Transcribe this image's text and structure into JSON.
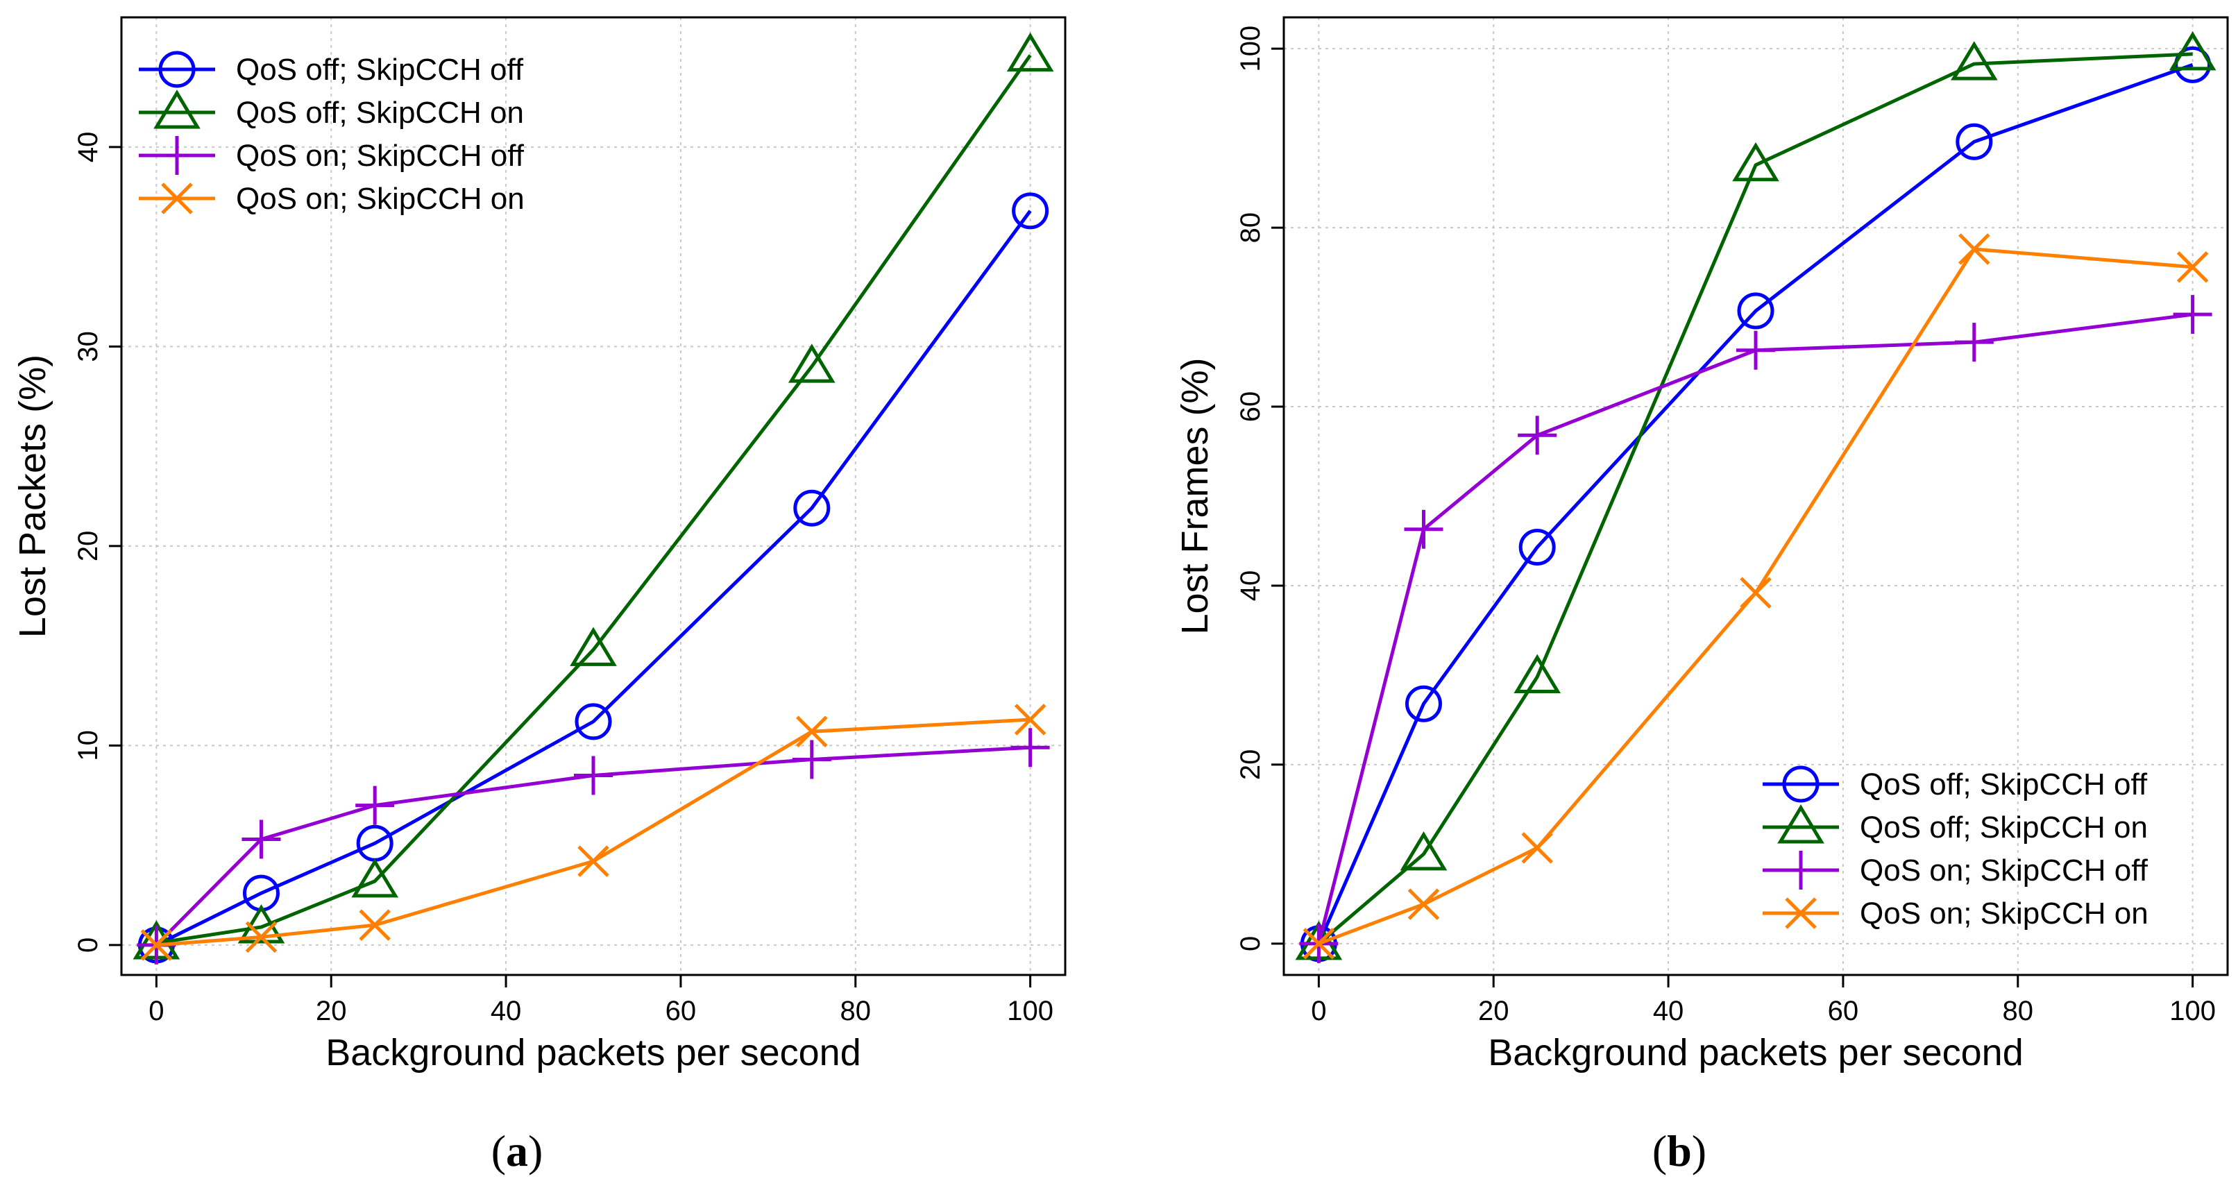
{
  "figure": {
    "panel_labels": [
      "(a)",
      "(b)"
    ]
  },
  "chart_data": [
    {
      "type": "line",
      "panel": "(a)",
      "xlabel": "Background packets per second",
      "ylabel": "Lost Packets (%)",
      "xlim": [
        -4,
        104
      ],
      "ylim": [
        -1.5,
        46.5
      ],
      "xticks": [
        0,
        20,
        40,
        60,
        80,
        100
      ],
      "yticks": [
        0,
        10,
        20,
        30,
        40
      ],
      "grid": true,
      "legend_position": "top-left",
      "x": [
        0,
        12,
        25,
        50,
        75,
        100
      ],
      "series": [
        {
          "name": "QoS off; SkipCCH off",
          "color": "#0000ff",
          "marker": "circle",
          "values": [
            0,
            2.6,
            5.1,
            11.2,
            21.9,
            36.8
          ]
        },
        {
          "name": "QoS off; SkipCCH on",
          "color": "#006400",
          "marker": "triangle",
          "values": [
            0.1,
            0.9,
            3.2,
            14.8,
            29.0,
            44.6
          ]
        },
        {
          "name": "QoS on; SkipCCH off",
          "color": "#9400d3",
          "marker": "plus",
          "values": [
            0,
            5.3,
            7.0,
            8.5,
            9.3,
            9.9
          ]
        },
        {
          "name": "QoS on; SkipCCH on",
          "color": "#ff7f00",
          "marker": "cross",
          "values": [
            0,
            0.4,
            1.0,
            4.2,
            10.7,
            11.3
          ]
        }
      ]
    },
    {
      "type": "line",
      "panel": "(b)",
      "xlabel": "Background packets per second",
      "ylabel": "Lost Frames (%)",
      "xlim": [
        -4,
        104
      ],
      "ylim": [
        -3.5,
        103.5
      ],
      "xticks": [
        0,
        20,
        40,
        60,
        80,
        100
      ],
      "yticks": [
        0,
        20,
        40,
        60,
        80,
        100
      ],
      "grid": true,
      "legend_position": "bottom-right",
      "x": [
        0,
        12,
        25,
        50,
        75,
        100
      ],
      "series": [
        {
          "name": "QoS off; SkipCCH off",
          "color": "#0000ff",
          "marker": "circle",
          "values": [
            0,
            26.8,
            44.3,
            70.7,
            89.6,
            98.2
          ]
        },
        {
          "name": "QoS off; SkipCCH on",
          "color": "#006400",
          "marker": "triangle",
          "values": [
            0,
            10.0,
            29.8,
            87.0,
            98.3,
            99.4
          ]
        },
        {
          "name": "QoS on; SkipCCH off",
          "color": "#9400d3",
          "marker": "plus",
          "values": [
            0,
            46.3,
            56.8,
            66.3,
            67.2,
            70.3
          ]
        },
        {
          "name": "QoS on; SkipCCH on",
          "color": "#ff7f00",
          "marker": "cross",
          "values": [
            0,
            4.4,
            10.7,
            39.2,
            77.6,
            75.6
          ]
        }
      ]
    }
  ]
}
